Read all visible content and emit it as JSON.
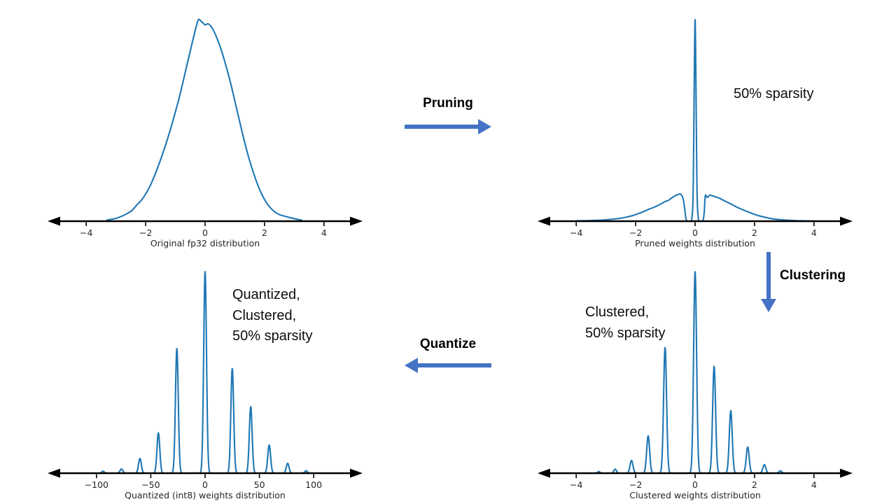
{
  "colors": {
    "curve": "#1f77b4",
    "flow_arrow": "#4472c4",
    "axis": "#000000",
    "chart_text": "#262626",
    "note_text": "#0d0d0d"
  },
  "flow": {
    "pruning": {
      "label": "Pruning",
      "direction": "right"
    },
    "clustering": {
      "label": "Clustering",
      "direction": "down"
    },
    "quantize": {
      "label": "Quantize",
      "direction": "left"
    }
  },
  "annotations": {
    "pruned": "50% sparsity",
    "clustered": "Clustered,\n50% sparsity",
    "quantized": "Quantized,\nClustered,\n50% sparsity"
  },
  "chart_data": [
    {
      "id": "original-fp32",
      "type": "line",
      "xlabel": "Original fp32 distribution",
      "xlim": [
        -5.3,
        5.3
      ],
      "ylim": [
        0,
        1.05
      ],
      "xticks": [
        -4,
        -2,
        0,
        2,
        4
      ],
      "grid": false,
      "curve_points": [
        [
          -3.3,
          0.006
        ],
        [
          -3.05,
          0.012
        ],
        [
          -2.8,
          0.025
        ],
        [
          -2.6,
          0.04
        ],
        [
          -2.45,
          0.055
        ],
        [
          -2.3,
          0.08
        ],
        [
          -2.15,
          0.103
        ],
        [
          -2.0,
          0.135
        ],
        [
          -1.85,
          0.175
        ],
        [
          -1.65,
          0.245
        ],
        [
          -1.45,
          0.325
        ],
        [
          -1.25,
          0.415
        ],
        [
          -1.05,
          0.515
        ],
        [
          -0.85,
          0.625
        ],
        [
          -0.65,
          0.75
        ],
        [
          -0.45,
          0.875
        ],
        [
          -0.3,
          0.965
        ],
        [
          -0.22,
          1.0
        ],
        [
          -0.12,
          0.99
        ],
        [
          0.0,
          0.974
        ],
        [
          0.1,
          0.979
        ],
        [
          0.22,
          0.962
        ],
        [
          0.35,
          0.925
        ],
        [
          0.5,
          0.868
        ],
        [
          0.65,
          0.798
        ],
        [
          0.85,
          0.69
        ],
        [
          1.05,
          0.565
        ],
        [
          1.25,
          0.44
        ],
        [
          1.45,
          0.325
        ],
        [
          1.65,
          0.23
        ],
        [
          1.85,
          0.152
        ],
        [
          2.05,
          0.095
        ],
        [
          2.25,
          0.058
        ],
        [
          2.45,
          0.036
        ],
        [
          2.65,
          0.026
        ],
        [
          2.85,
          0.018
        ],
        [
          3.05,
          0.011
        ],
        [
          3.25,
          0.005
        ]
      ]
    },
    {
      "id": "pruned-weights",
      "type": "line",
      "xlabel": "Pruned weights distribution",
      "xlim": [
        -5.3,
        5.3
      ],
      "ylim": [
        0,
        1.05
      ],
      "xticks": [
        -4,
        -2,
        0,
        2,
        4
      ],
      "grid": false,
      "curve_points": [
        [
          -4.0,
          0.002
        ],
        [
          -3.6,
          0.003
        ],
        [
          -3.2,
          0.005
        ],
        [
          -2.9,
          0.008
        ],
        [
          -2.6,
          0.013
        ],
        [
          -2.35,
          0.019
        ],
        [
          -2.1,
          0.028
        ],
        [
          -1.9,
          0.038
        ],
        [
          -1.7,
          0.05
        ],
        [
          -1.55,
          0.06
        ],
        [
          -1.4,
          0.068
        ],
        [
          -1.25,
          0.078
        ],
        [
          -1.1,
          0.09
        ],
        [
          -1.0,
          0.098
        ],
        [
          -0.9,
          0.103
        ],
        [
          -0.82,
          0.112
        ],
        [
          -0.74,
          0.12
        ],
        [
          -0.66,
          0.127
        ],
        [
          -0.58,
          0.132
        ],
        [
          -0.5,
          0.135
        ],
        [
          -0.45,
          0.128
        ],
        [
          -0.41,
          0.115
        ],
        [
          -0.38,
          0.095
        ],
        [
          -0.35,
          0.06
        ],
        [
          -0.32,
          0.025
        ],
        [
          -0.3,
          0.008
        ],
        [
          -0.27,
          0.001
        ],
        [
          -0.2,
          0.0
        ],
        [
          -0.14,
          0.0
        ],
        [
          -0.11,
          0.012
        ],
        [
          -0.08,
          0.07
        ],
        [
          -0.06,
          0.2
        ],
        [
          -0.045,
          0.42
        ],
        [
          -0.03,
          0.66
        ],
        [
          -0.015,
          0.88
        ],
        [
          0.0,
          1.0
        ],
        [
          0.015,
          0.88
        ],
        [
          0.03,
          0.66
        ],
        [
          0.045,
          0.42
        ],
        [
          0.06,
          0.2
        ],
        [
          0.08,
          0.07
        ],
        [
          0.11,
          0.012
        ],
        [
          0.14,
          0.0
        ],
        [
          0.2,
          0.0
        ],
        [
          0.25,
          0.002
        ],
        [
          0.28,
          0.012
        ],
        [
          0.31,
          0.05
        ],
        [
          0.33,
          0.105
        ],
        [
          0.35,
          0.13
        ],
        [
          0.38,
          0.122
        ],
        [
          0.42,
          0.118
        ],
        [
          0.46,
          0.125
        ],
        [
          0.5,
          0.129
        ],
        [
          0.56,
          0.127
        ],
        [
          0.63,
          0.124
        ],
        [
          0.7,
          0.12
        ],
        [
          0.8,
          0.115
        ],
        [
          0.9,
          0.108
        ],
        [
          1.0,
          0.1
        ],
        [
          1.1,
          0.093
        ],
        [
          1.25,
          0.082
        ],
        [
          1.4,
          0.07
        ],
        [
          1.55,
          0.06
        ],
        [
          1.7,
          0.051
        ],
        [
          1.85,
          0.042
        ],
        [
          2.0,
          0.034
        ],
        [
          2.2,
          0.025
        ],
        [
          2.4,
          0.018
        ],
        [
          2.6,
          0.012
        ],
        [
          2.85,
          0.008
        ],
        [
          3.1,
          0.005
        ],
        [
          3.5,
          0.002
        ],
        [
          4.0,
          0.001
        ]
      ],
      "annotation": "50% sparsity"
    },
    {
      "id": "quantized-int8-weights",
      "type": "line",
      "xlabel": "Quantized (int8) weights distribution",
      "xlim": [
        -145,
        145
      ],
      "ylim": [
        0,
        1.05
      ],
      "xticks": [
        -100,
        -50,
        0,
        50,
        100
      ],
      "grid": false,
      "sample_span": [
        -113,
        113
      ],
      "gaussian_components": [
        {
          "mu": -94,
          "sigma": 1.2,
          "amp": 0.01
        },
        {
          "mu": -77,
          "sigma": 1.3,
          "amp": 0.021
        },
        {
          "mu": -60,
          "sigma": 1.3,
          "amp": 0.073
        },
        {
          "mu": -43,
          "sigma": 1.3,
          "amp": 0.2
        },
        {
          "mu": -26,
          "sigma": 1.3,
          "amp": 0.62
        },
        {
          "mu": 0,
          "sigma": 1.3,
          "amp": 1.0
        },
        {
          "mu": 25,
          "sigma": 1.3,
          "amp": 0.52
        },
        {
          "mu": 42,
          "sigma": 1.3,
          "amp": 0.33
        },
        {
          "mu": 59,
          "sigma": 1.3,
          "amp": 0.14
        },
        {
          "mu": 76,
          "sigma": 1.3,
          "amp": 0.049
        },
        {
          "mu": 93,
          "sigma": 1.2,
          "amp": 0.012
        }
      ],
      "annotation": "Quantized, Clustered, 50% sparsity"
    },
    {
      "id": "clustered-weights",
      "type": "line",
      "xlabel": "Clustered weights distribution",
      "xlim": [
        -5.3,
        5.3
      ],
      "ylim": [
        0,
        1.05
      ],
      "xticks": [
        -4,
        -2,
        0,
        2,
        4
      ],
      "grid": false,
      "sample_span": [
        -4.35,
        4.25
      ],
      "gaussian_components": [
        {
          "mu": -3.24,
          "sigma": 0.04,
          "amp": 0.008
        },
        {
          "mu": -2.69,
          "sigma": 0.045,
          "amp": 0.02
        },
        {
          "mu": -2.14,
          "sigma": 0.05,
          "amp": 0.063
        },
        {
          "mu": -1.58,
          "sigma": 0.05,
          "amp": 0.185
        },
        {
          "mu": -1.01,
          "sigma": 0.05,
          "amp": 0.625
        },
        {
          "mu": 0.0,
          "sigma": 0.05,
          "amp": 1.0
        },
        {
          "mu": 0.64,
          "sigma": 0.05,
          "amp": 0.53
        },
        {
          "mu": 1.2,
          "sigma": 0.05,
          "amp": 0.31
        },
        {
          "mu": 1.77,
          "sigma": 0.05,
          "amp": 0.13
        },
        {
          "mu": 2.33,
          "sigma": 0.05,
          "amp": 0.042
        },
        {
          "mu": 2.87,
          "sigma": 0.045,
          "amp": 0.012
        }
      ],
      "annotation": "Clustered, 50% sparsity"
    }
  ]
}
